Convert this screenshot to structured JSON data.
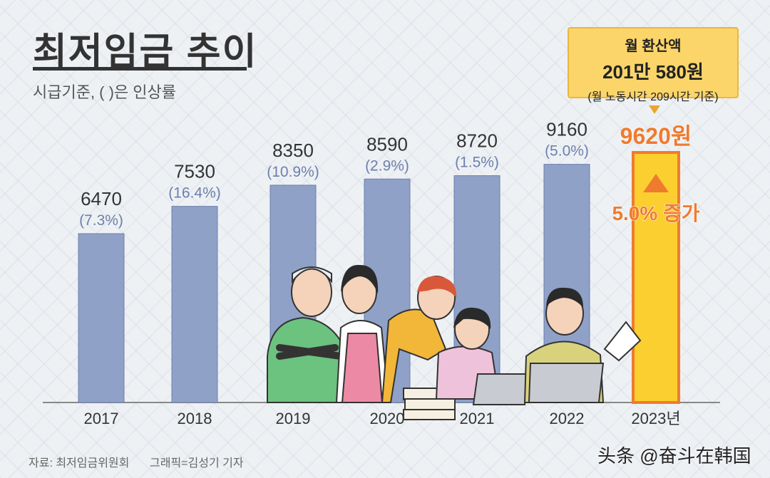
{
  "header": {
    "title": "최저임금 추이",
    "subtitle": "시급기준, ( )은 인상률"
  },
  "callout": {
    "line1": "월 환산액",
    "line2": "201만 580원",
    "line3": "(월 노동시간 209시간 기준)"
  },
  "highlight": {
    "value_label": "9620원",
    "increase_label": "5.0% 증가"
  },
  "footer": {
    "source": "자료: 최저임금위원회",
    "credit": "그래픽=김성기 기자",
    "watermark": "头条 @奋斗在韩国"
  },
  "colors": {
    "bar": "#8fa1c7",
    "bar_border": "#6d80ad",
    "highlight_bar": "#fbcf2f",
    "highlight_border": "#ef7b2e",
    "rate_text": "#6d80ad",
    "highlight_text": "#ef7b2e"
  },
  "chart_data": {
    "type": "bar",
    "title": "최저임금 추이",
    "subtitle": "시급기준, ( )은 인상률",
    "categories": [
      "2017",
      "2018",
      "2019",
      "2020",
      "2021",
      "2022",
      "2023년"
    ],
    "values": [
      6470,
      7530,
      8350,
      8590,
      8720,
      9160,
      9620
    ],
    "value_labels": [
      "6470",
      "7530",
      "8350",
      "8590",
      "8720",
      "9160",
      "9620원"
    ],
    "rate_labels": [
      "(7.3%)",
      "(16.4%)",
      "(10.9%)",
      "(2.9%)",
      "(1.5%)",
      "(5.0%)",
      "5.0% 증가"
    ],
    "highlight_index": 6,
    "xlabel": "",
    "ylabel": "",
    "grid": false
  }
}
